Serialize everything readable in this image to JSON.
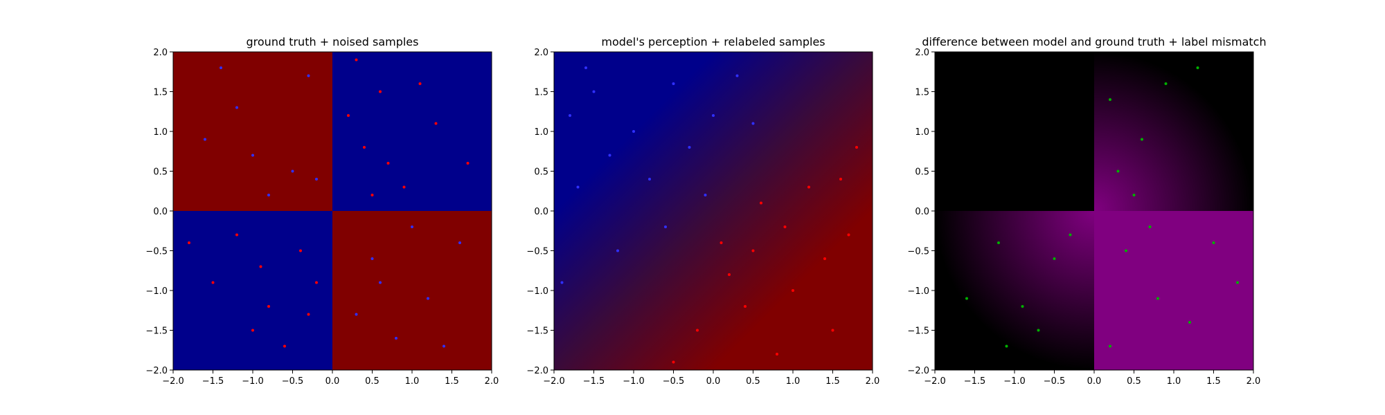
{
  "chart_data": [
    {
      "type": "heatmap",
      "title": "ground truth + noised samples",
      "background": "quadrant-checkerboard",
      "quadrant_colors": {
        "x<0,y>0": "#800000",
        "x>0,y>0": "#00008b",
        "x<0,y<0": "#00008b",
        "x>0,y<0": "#800000"
      },
      "xlim": [
        -2.0,
        2.0
      ],
      "ylim": [
        -2.0,
        2.0
      ],
      "xticks": [
        "−2.0",
        "−1.5",
        "−1.0",
        "−0.5",
        "0.0",
        "0.5",
        "1.0",
        "1.5",
        "2.0"
      ],
      "yticks": [
        "−2.0",
        "−1.5",
        "−1.0",
        "−0.5",
        "0.0",
        "0.5",
        "1.0",
        "1.5",
        "2.0"
      ],
      "series": [
        {
          "color": "#ff0000",
          "points": [
            [
              0.2,
              1.2
            ],
            [
              0.4,
              0.8
            ],
            [
              0.6,
              1.5
            ],
            [
              0.9,
              0.3
            ],
            [
              1.3,
              1.1
            ],
            [
              0.5,
              0.2
            ],
            [
              1.7,
              0.6
            ],
            [
              0.3,
              1.9
            ],
            [
              -0.4,
              -0.5
            ],
            [
              -0.8,
              -1.2
            ],
            [
              -1.2,
              -0.3
            ],
            [
              -0.6,
              -1.7
            ],
            [
              -1.5,
              -0.9
            ],
            [
              -0.2,
              -0.9
            ],
            [
              -1.0,
              -1.5
            ],
            [
              -1.8,
              -0.4
            ],
            [
              0.7,
              0.6
            ],
            [
              1.1,
              1.6
            ],
            [
              -0.9,
              -0.7
            ],
            [
              -0.3,
              -1.3
            ]
          ]
        },
        {
          "color": "#3030ff",
          "points": [
            [
              -0.5,
              0.5
            ],
            [
              -1.2,
              1.3
            ],
            [
              -0.8,
              0.2
            ],
            [
              -1.6,
              0.9
            ],
            [
              -0.3,
              1.7
            ],
            [
              0.5,
              -0.6
            ],
            [
              1.2,
              -1.1
            ],
            [
              0.8,
              -1.6
            ],
            [
              1.6,
              -0.4
            ],
            [
              0.3,
              -1.3
            ],
            [
              -1.0,
              0.7
            ],
            [
              1.0,
              -0.2
            ],
            [
              1.4,
              -1.7
            ],
            [
              -1.4,
              1.8
            ],
            [
              -0.2,
              0.4
            ],
            [
              0.6,
              -0.9
            ]
          ]
        }
      ]
    },
    {
      "type": "heatmap",
      "title": "model's perception + relabeled samples",
      "background": "diagonal-gradient",
      "gradient_colors": {
        "top-left": "#00008b",
        "bottom-right": "#800000"
      },
      "xlim": [
        -2.0,
        2.0
      ],
      "ylim": [
        -2.0,
        2.0
      ],
      "xticks": [
        "−2.0",
        "−1.5",
        "−1.0",
        "−0.5",
        "0.0",
        "0.5",
        "1.0",
        "1.5",
        "2.0"
      ],
      "yticks": [
        "−2.0",
        "−1.5",
        "−1.0",
        "−0.5",
        "0.0",
        "0.5",
        "1.0",
        "1.5",
        "2.0"
      ],
      "series": [
        {
          "color": "#3030ff",
          "points": [
            [
              -1.5,
              1.5
            ],
            [
              -1.0,
              1.0
            ],
            [
              -0.5,
              1.6
            ],
            [
              -1.7,
              0.3
            ],
            [
              -0.8,
              0.4
            ],
            [
              0.0,
              1.2
            ],
            [
              -1.2,
              -0.5
            ],
            [
              -0.3,
              0.8
            ],
            [
              0.3,
              1.7
            ],
            [
              -1.6,
              1.8
            ],
            [
              -0.6,
              -0.2
            ],
            [
              -1.9,
              -0.9
            ],
            [
              0.5,
              1.1
            ],
            [
              -1.3,
              0.7
            ],
            [
              -0.1,
              0.2
            ],
            [
              -1.8,
              1.2
            ]
          ]
        },
        {
          "color": "#ff0000",
          "points": [
            [
              1.0,
              -1.0
            ],
            [
              0.5,
              -0.5
            ],
            [
              1.5,
              -1.5
            ],
            [
              0.8,
              -1.8
            ],
            [
              1.7,
              -0.3
            ],
            [
              0.2,
              -0.8
            ],
            [
              1.2,
              0.3
            ],
            [
              0.6,
              0.1
            ],
            [
              -0.2,
              -1.5
            ],
            [
              1.8,
              0.8
            ],
            [
              0.4,
              -1.2
            ],
            [
              1.4,
              -0.6
            ],
            [
              -0.5,
              -1.9
            ],
            [
              0.9,
              -0.2
            ],
            [
              1.6,
              0.4
            ],
            [
              0.1,
              -0.4
            ]
          ]
        }
      ]
    },
    {
      "type": "heatmap",
      "title": "difference between model and ground truth + label mismatch",
      "background": "difference-map",
      "colors": {
        "match": "#000000",
        "mismatch": "#800080"
      },
      "xlim": [
        -2.0,
        2.0
      ],
      "ylim": [
        -2.0,
        2.0
      ],
      "xticks": [
        "−2.0",
        "−1.5",
        "−1.0",
        "−0.5",
        "0.0",
        "0.5",
        "1.0",
        "1.5",
        "2.0"
      ],
      "yticks": [
        "−2.0",
        "−1.5",
        "−1.0",
        "−0.5",
        "0.0",
        "0.5",
        "1.0",
        "1.5",
        "2.0"
      ],
      "series": [
        {
          "color": "#00b000",
          "points": [
            [
              0.3,
              0.5
            ],
            [
              0.6,
              0.9
            ],
            [
              0.2,
              1.4
            ],
            [
              0.9,
              1.6
            ],
            [
              1.3,
              1.8
            ],
            [
              0.5,
              0.2
            ],
            [
              0.4,
              -0.5
            ],
            [
              0.8,
              -1.1
            ],
            [
              1.5,
              -0.4
            ],
            [
              0.2,
              -1.7
            ],
            [
              1.2,
              -1.4
            ],
            [
              0.7,
              -0.2
            ],
            [
              -0.5,
              -0.6
            ],
            [
              -0.9,
              -1.2
            ],
            [
              -1.2,
              -0.4
            ],
            [
              -0.7,
              -1.5
            ],
            [
              -1.6,
              -1.1
            ],
            [
              -0.3,
              -0.3
            ],
            [
              -1.1,
              -1.7
            ],
            [
              1.8,
              -0.9
            ]
          ]
        }
      ]
    }
  ]
}
